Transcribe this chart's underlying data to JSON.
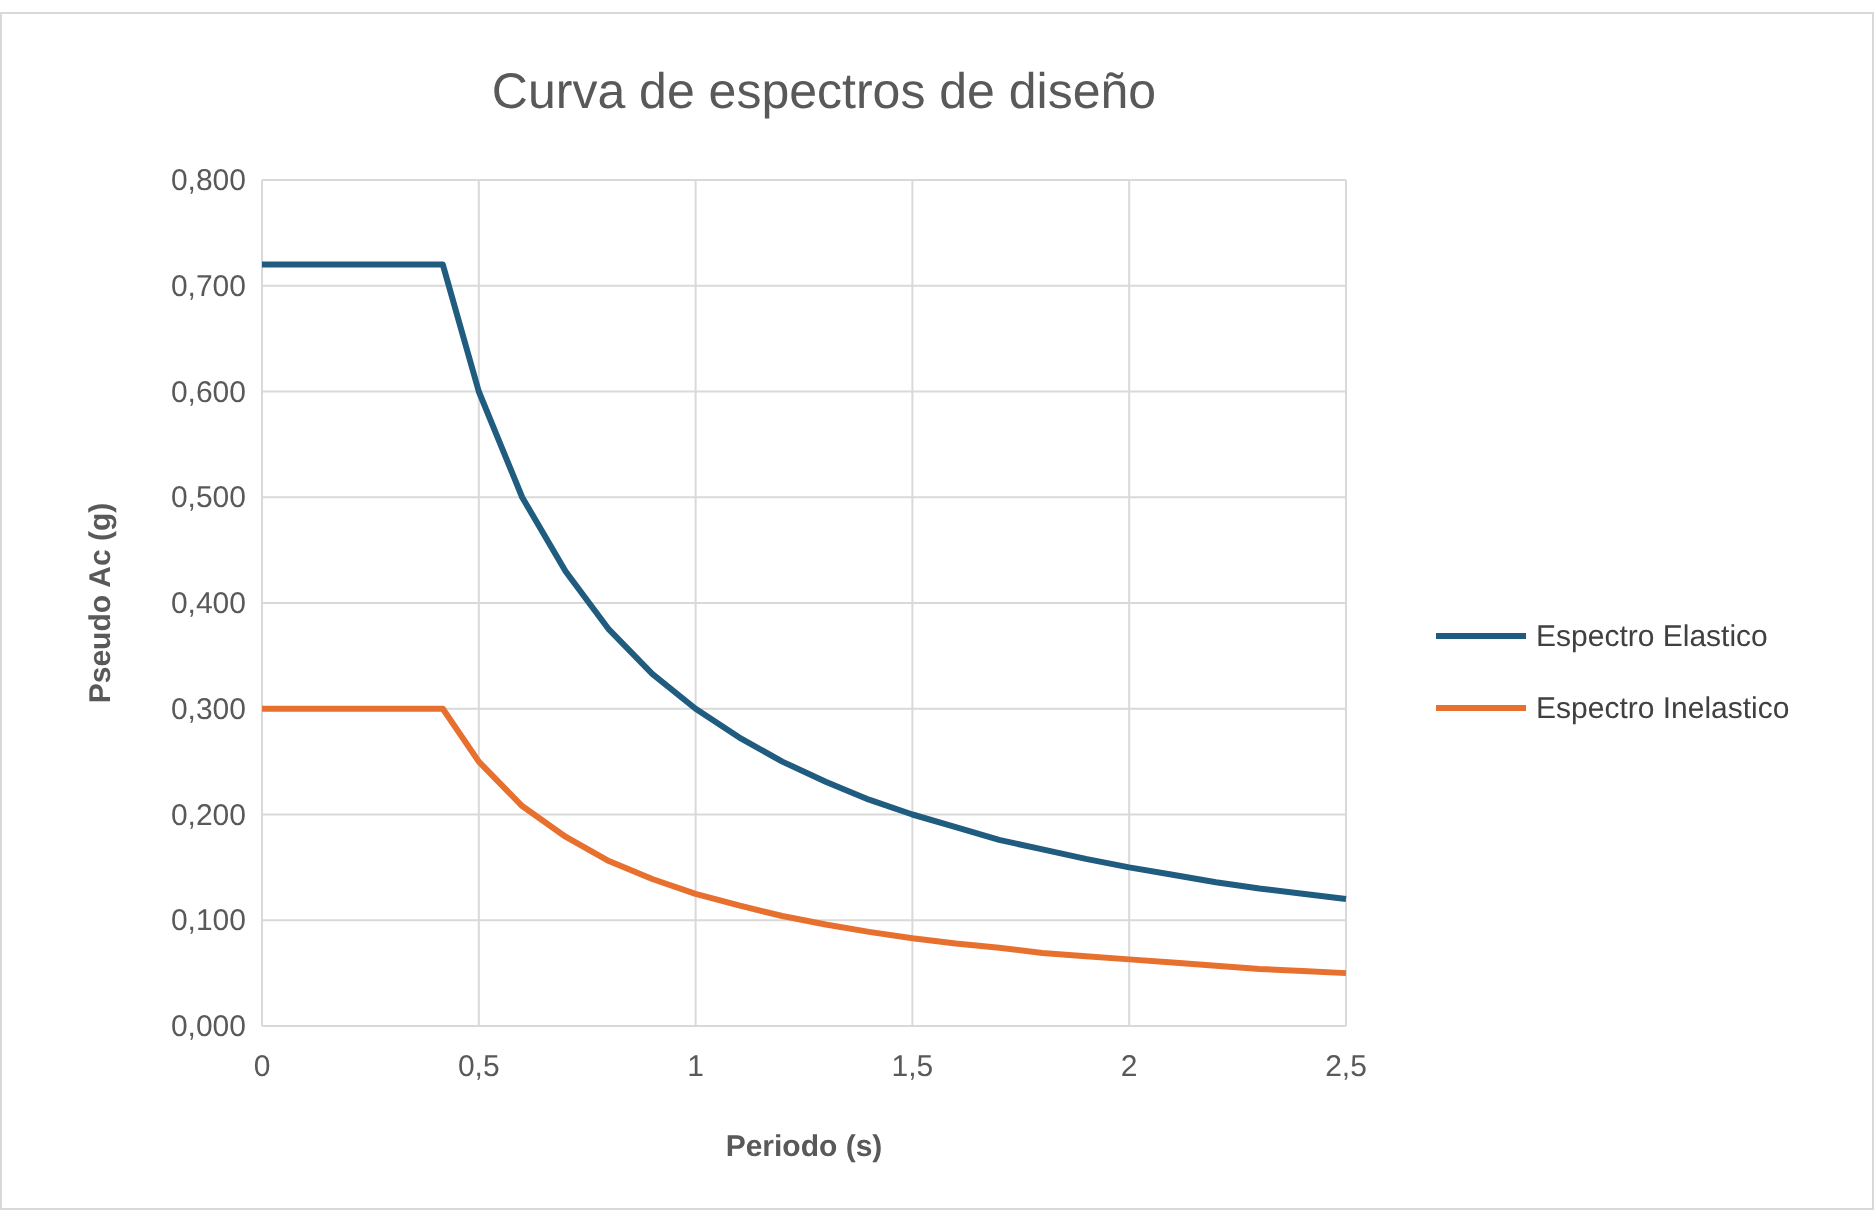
{
  "chart_data": {
    "type": "line",
    "title": "Curva de espectros de diseño",
    "xlabel": "Periodo (s)",
    "ylabel": "Pseudo Ac (g)",
    "x": [
      0,
      0.1,
      0.2,
      0.3,
      0.417,
      0.5,
      0.6,
      0.7,
      0.8,
      0.9,
      1.0,
      1.1,
      1.2,
      1.3,
      1.4,
      1.5,
      1.6,
      1.7,
      1.8,
      1.9,
      2.0,
      2.1,
      2.2,
      2.3,
      2.4,
      2.5
    ],
    "series": [
      {
        "name": "Espectro Elastico",
        "color": "#1f5c7f",
        "values": [
          0.72,
          0.72,
          0.72,
          0.72,
          0.72,
          0.6,
          0.5,
          0.43,
          0.375,
          0.333,
          0.3,
          0.273,
          0.25,
          0.231,
          0.214,
          0.2,
          0.188,
          0.176,
          0.167,
          0.158,
          0.15,
          0.143,
          0.136,
          0.13,
          0.125,
          0.12
        ]
      },
      {
        "name": "Espectro Inelastico",
        "color": "#e8702f",
        "values": [
          0.3,
          0.3,
          0.3,
          0.3,
          0.3,
          0.25,
          0.208,
          0.179,
          0.156,
          0.139,
          0.125,
          0.114,
          0.104,
          0.096,
          0.089,
          0.083,
          0.078,
          0.074,
          0.069,
          0.066,
          0.063,
          0.06,
          0.057,
          0.054,
          0.052,
          0.05
        ]
      }
    ],
    "xlim": [
      0,
      2.5
    ],
    "xticks": [
      0,
      {
        "value": 0.5,
        "label": "0,5"
      },
      1,
      {
        "value": 1.5,
        "label": "1,5"
      },
      2,
      {
        "value": 2.5,
        "label": "2,5"
      }
    ],
    "ylim": [
      0,
      0.8
    ],
    "yticks": [
      {
        "value": 0,
        "label": "0,000"
      },
      {
        "value": 0.1,
        "label": "0,100"
      },
      {
        "value": 0.2,
        "label": "0,200"
      },
      {
        "value": 0.3,
        "label": "0,300"
      },
      {
        "value": 0.4,
        "label": "0,400"
      },
      {
        "value": 0.5,
        "label": "0,500"
      },
      {
        "value": 0.6,
        "label": "0,600"
      },
      {
        "value": 0.7,
        "label": "0,700"
      },
      {
        "value": 0.8,
        "label": "0,800"
      }
    ],
    "grid": true,
    "legend": "right",
    "marker": "none",
    "line_style": "solid"
  }
}
